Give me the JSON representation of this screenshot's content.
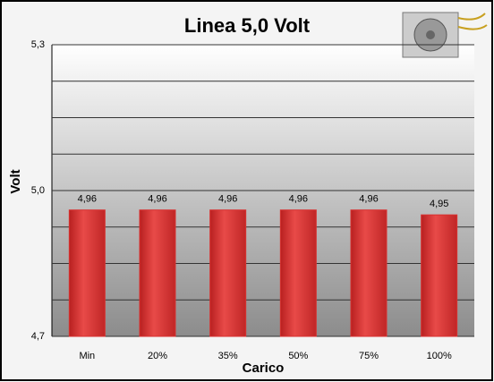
{
  "chart_data": {
    "type": "bar",
    "title": "Linea 5,0 Volt",
    "y_label": "Volt",
    "x_label": "Carico",
    "categories": [
      "Min",
      "20%",
      "35%",
      "50%",
      "75%",
      "100%"
    ],
    "values": [
      4.96,
      4.96,
      4.96,
      4.96,
      4.96,
      4.95
    ],
    "value_labels": [
      "4,96",
      "4,96",
      "4,96",
      "4,96",
      "4,96",
      "4,95"
    ],
    "color": "#d9302f",
    "ylim": [
      4.7,
      5.3
    ],
    "yticks": [
      {
        "value": 4.7,
        "label": "4,7"
      },
      {
        "value": 5.0,
        "label": "5,0"
      },
      {
        "value": 5.3,
        "label": "5,3"
      }
    ],
    "minor_grid": [
      4.775,
      4.85,
      4.925,
      5.075,
      5.15,
      5.225
    ],
    "grid": true
  }
}
